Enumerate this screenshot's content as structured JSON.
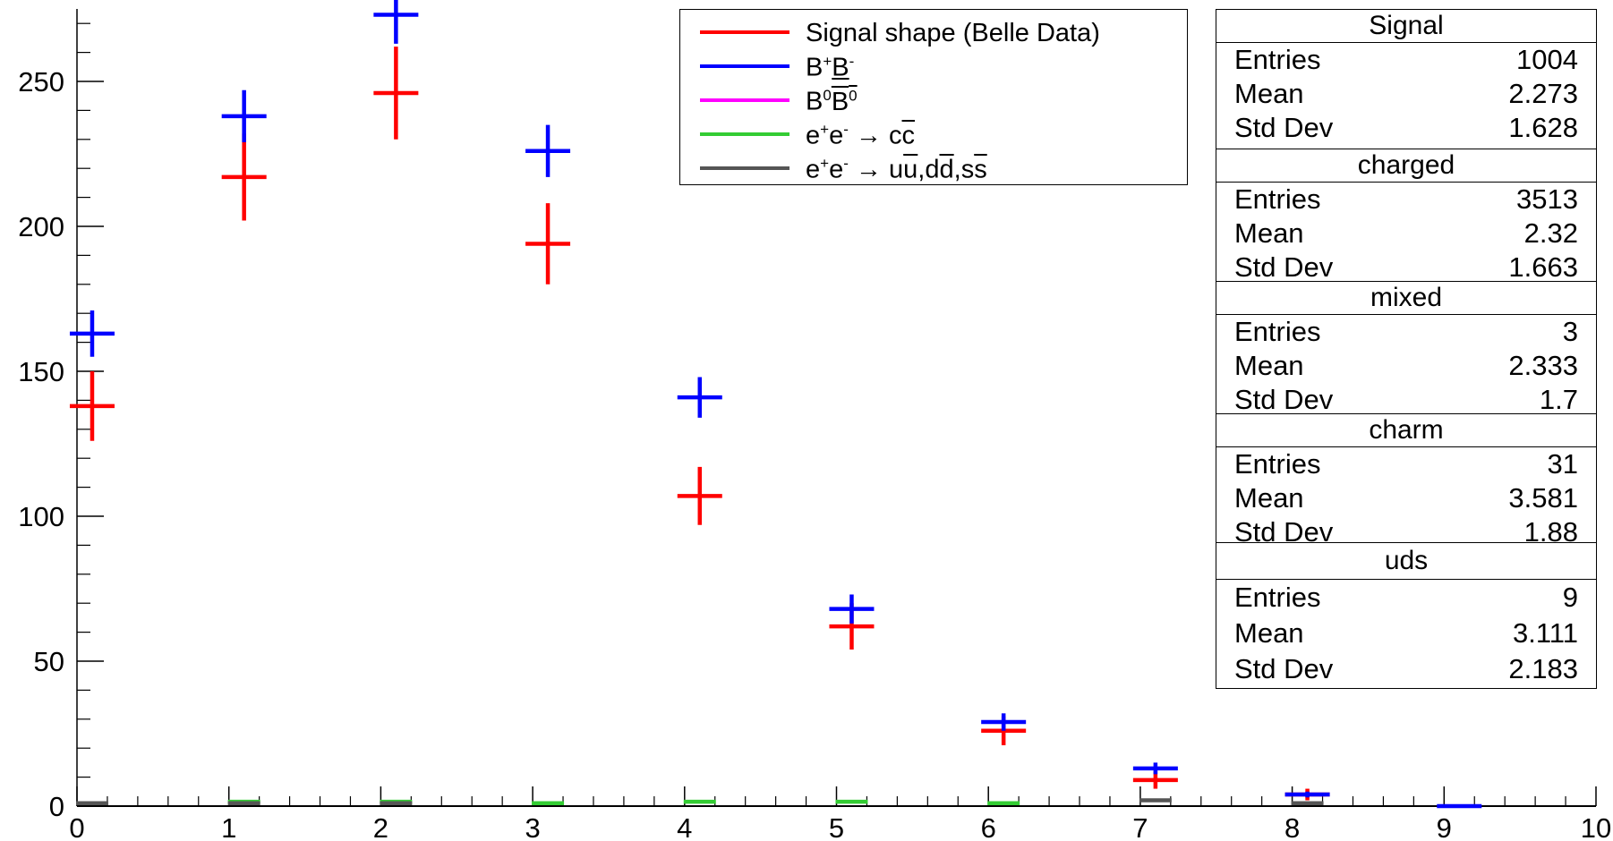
{
  "chart_data": {
    "type": "scatter",
    "xlim": [
      0,
      10
    ],
    "ylim": [
      0,
      275
    ],
    "x_ticks": [
      0,
      1,
      2,
      3,
      4,
      5,
      6,
      7,
      8,
      9,
      10
    ],
    "y_ticks": [
      0,
      50,
      100,
      150,
      200,
      250
    ],
    "x_tick_labels": [
      "0",
      "1",
      "2",
      "3",
      "4",
      "5",
      "6",
      "7",
      "8",
      "9",
      "10"
    ],
    "y_tick_labels": [
      "0",
      "50",
      "100",
      "150",
      "200",
      "250"
    ],
    "grid": false,
    "series": [
      {
        "name": "Signal shape (Belle Data)",
        "color": "#ff0000",
        "x": [
          0.1,
          1.1,
          2.1,
          3.1,
          4.1,
          5.1,
          6.1,
          7.1,
          8.1
        ],
        "y": [
          138,
          217,
          246,
          194,
          107,
          62,
          26,
          9,
          4
        ],
        "yerr": [
          12,
          15,
          16,
          14,
          10,
          8,
          5,
          3,
          2
        ]
      },
      {
        "name": "B+B-",
        "color": "#0000ff",
        "x": [
          0.1,
          1.1,
          2.1,
          3.1,
          4.1,
          5.1,
          6.1,
          7.1,
          8.1,
          9.1
        ],
        "y": [
          163,
          238,
          273,
          226,
          141,
          68,
          29,
          13,
          4,
          0
        ],
        "yerr": [
          8,
          9,
          10,
          9,
          7,
          5,
          3,
          2,
          1,
          0
        ]
      },
      {
        "name": "B0B0bar",
        "color": "#ff00ff",
        "x": [],
        "y": []
      },
      {
        "name": "e+e- -> ccbar",
        "color": "#33cc33",
        "x": [
          1.1,
          2.1,
          3.1,
          4.1,
          5.1,
          6.1
        ],
        "y": [
          1.5,
          1.5,
          1,
          1.5,
          1.5,
          1
        ]
      },
      {
        "name": "e+e- -> uubar,ddbar,ssbar",
        "color": "#555555",
        "x": [
          0.1,
          1.1,
          2.1,
          7.1,
          8.1
        ],
        "y": [
          1,
          1,
          1,
          2,
          1
        ]
      }
    ]
  },
  "legend": {
    "items": [
      {
        "color": "#ff0000"
      },
      {
        "color": "#0000ff"
      },
      {
        "color": "#ff00ff"
      },
      {
        "color": "#33cc33"
      },
      {
        "color": "#555555"
      }
    ],
    "signal_label": "Signal shape (Belle Data)",
    "bpbm_b": "B",
    "bpbm_sup1": "+",
    "bpbm_b2": "B",
    "bpbm_sup2": "-",
    "b0_b": "B",
    "b0_sup1": "0",
    "b0_b2": "B",
    "b0_sup2": "0",
    "cc_e": "e",
    "cc_sup1": "+",
    "cc_e2": "e",
    "cc_sup2": "-",
    "cc_arrow": " → ",
    "cc_c": "c",
    "cc_cbar": "c",
    "uds_e": "e",
    "uds_sup1": "+",
    "uds_e2": "e",
    "uds_sup2": "-",
    "uds_arrow": " → ",
    "uds_u": "u",
    "uds_ubar": "u",
    "uds_comma1": ",",
    "uds_d": "d",
    "uds_dbar": "d",
    "uds_comma2": ",",
    "uds_s": "s",
    "uds_sbar": "s"
  },
  "stats": [
    {
      "title": "Signal",
      "entries_label": "Entries",
      "entries": "1004",
      "mean_label": "Mean",
      "mean": "2.273",
      "std_label": "Std Dev",
      "std": "1.628"
    },
    {
      "title": "charged",
      "entries_label": "Entries",
      "entries": "3513",
      "mean_label": "Mean",
      "mean": "2.32",
      "std_label": "Std Dev",
      "std": "1.663"
    },
    {
      "title": "mixed",
      "entries_label": "Entries",
      "entries": "3",
      "mean_label": "Mean",
      "mean": "2.333",
      "std_label": "Std Dev",
      "std": "1.7"
    },
    {
      "title": "charm",
      "entries_label": "Entries",
      "entries": "31",
      "mean_label": "Mean",
      "mean": "3.581",
      "std_label": "Std Dev",
      "std": "1.88"
    },
    {
      "title": "uds",
      "entries_label": "Entries",
      "entries": "9",
      "mean_label": "Mean",
      "mean": "3.111",
      "std_label": "Std Dev",
      "std": "2.183"
    }
  ]
}
